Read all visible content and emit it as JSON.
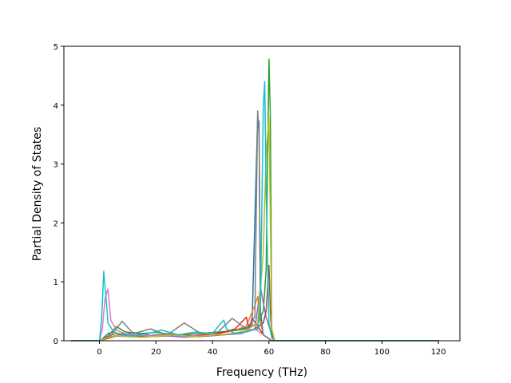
{
  "chart_data": {
    "type": "line",
    "title": "",
    "xlabel": "Frequency (THz)",
    "ylabel": "Partial Density of States",
    "xlim": [
      -12.6,
      127.6
    ],
    "ylim": [
      0,
      5
    ],
    "xticks": [
      0,
      20,
      40,
      60,
      80,
      100,
      120
    ],
    "yticks": [
      0,
      1,
      2,
      3,
      4,
      5
    ],
    "xtick_labels": [
      "0",
      "20",
      "40",
      "60",
      "80",
      "100",
      "120"
    ],
    "ytick_labels": [
      "0",
      "1",
      "2",
      "3",
      "4",
      "5"
    ],
    "grid": false,
    "legend": "none",
    "series": [
      {
        "color": "#1f77b4",
        "x": [
          -10,
          0,
          1,
          3,
          5,
          8,
          12,
          18,
          25,
          32,
          40,
          45,
          50,
          54,
          56,
          56.5,
          57,
          58,
          61,
          62,
          120
        ],
        "y": [
          0,
          0,
          0.03,
          0.12,
          0.15,
          0.1,
          0.14,
          0.09,
          0.11,
          0.08,
          0.13,
          0.16,
          0.2,
          0.25,
          3.8,
          3.7,
          0.5,
          0.1,
          0,
          0,
          0
        ]
      },
      {
        "color": "#ff7f0e",
        "x": [
          -10,
          0,
          2,
          4,
          6,
          10,
          14,
          20,
          28,
          35,
          42,
          48,
          52,
          55,
          56,
          57,
          58,
          61,
          62,
          120
        ],
        "y": [
          0,
          0,
          0.05,
          0.1,
          0.12,
          0.08,
          0.11,
          0.07,
          0.1,
          0.09,
          0.12,
          0.18,
          0.25,
          0.6,
          0.75,
          0.3,
          0.1,
          0,
          0,
          0
        ]
      },
      {
        "color": "#2ca02c",
        "x": [
          -10,
          0,
          3,
          6,
          9,
          14,
          20,
          27,
          34,
          40,
          46,
          52,
          56,
          58,
          59,
          60,
          60.5,
          61,
          62,
          120
        ],
        "y": [
          0,
          0,
          0.08,
          0.24,
          0.15,
          0.12,
          0.14,
          0.1,
          0.12,
          0.14,
          0.16,
          0.2,
          0.3,
          0.5,
          1.2,
          4.78,
          3.8,
          0.2,
          0,
          0
        ]
      },
      {
        "color": "#d62728",
        "x": [
          -10,
          0,
          4,
          8,
          12,
          18,
          24,
          30,
          36,
          42,
          48,
          50,
          52,
          53,
          54,
          56,
          58,
          61,
          62,
          120
        ],
        "y": [
          0,
          0,
          0.05,
          0.12,
          0.1,
          0.08,
          0.1,
          0.07,
          0.09,
          0.12,
          0.2,
          0.3,
          0.4,
          0.2,
          0.38,
          0.25,
          0.1,
          0,
          0,
          0
        ]
      },
      {
        "color": "#9467bd",
        "x": [
          -10,
          0,
          2,
          6,
          10,
          16,
          22,
          30,
          38,
          44,
          50,
          55,
          57,
          59,
          61,
          62,
          120
        ],
        "y": [
          0,
          0,
          0.04,
          0.08,
          0.07,
          0.06,
          0.09,
          0.06,
          0.08,
          0.1,
          0.12,
          0.2,
          0.9,
          0.4,
          0.1,
          0,
          0
        ]
      },
      {
        "color": "#8c564b",
        "x": [
          -10,
          0,
          3,
          7,
          11,
          17,
          23,
          29,
          35,
          41,
          47,
          52,
          55,
          58,
          59,
          60,
          60.5,
          61,
          62,
          120
        ],
        "y": [
          0,
          0,
          0.06,
          0.1,
          0.08,
          0.07,
          0.08,
          0.1,
          0.07,
          0.09,
          0.12,
          0.15,
          0.2,
          0.3,
          0.5,
          1.28,
          0.5,
          0.1,
          0,
          0
        ]
      },
      {
        "color": "#e377c2",
        "x": [
          -10,
          0,
          1,
          2,
          3,
          4,
          6,
          9,
          13,
          19,
          25,
          31,
          37,
          43,
          49,
          55,
          58,
          61,
          62,
          120
        ],
        "y": [
          0,
          0,
          0.2,
          0.72,
          0.88,
          0.35,
          0.18,
          0.12,
          0.1,
          0.08,
          0.1,
          0.07,
          0.12,
          0.1,
          0.14,
          0.2,
          0.1,
          0,
          0,
          0
        ]
      },
      {
        "color": "#7f7f7f",
        "x": [
          -10,
          0,
          4,
          8,
          12,
          18,
          24,
          30,
          36,
          42,
          47,
          52,
          55,
          56,
          56.5,
          57,
          58,
          61,
          62,
          120
        ],
        "y": [
          0,
          0,
          0.08,
          0.33,
          0.12,
          0.2,
          0.1,
          0.3,
          0.12,
          0.15,
          0.38,
          0.2,
          0.4,
          3.9,
          3.5,
          0.4,
          0.1,
          0,
          0,
          0
        ]
      },
      {
        "color": "#bcbd22",
        "x": [
          -10,
          0,
          3,
          6,
          10,
          15,
          21,
          27,
          33,
          39,
          45,
          51,
          56,
          58,
          59,
          60,
          61,
          62,
          120
        ],
        "y": [
          0,
          0,
          0.05,
          0.09,
          0.07,
          0.06,
          0.08,
          0.1,
          0.07,
          0.09,
          0.11,
          0.15,
          0.3,
          1.5,
          3.2,
          3.8,
          0.2,
          0,
          0
        ]
      },
      {
        "color": "#17becf",
        "x": [
          -10,
          0,
          0.8,
          1.5,
          2.2,
          3,
          5,
          8,
          12,
          17,
          22,
          28,
          34,
          40,
          43,
          44,
          45,
          48,
          52,
          56,
          57,
          58,
          58.5,
          59,
          60,
          61,
          62,
          120
        ],
        "y": [
          0,
          0,
          0.4,
          1.18,
          0.8,
          0.3,
          0.15,
          0.1,
          0.08,
          0.12,
          0.18,
          0.1,
          0.15,
          0.12,
          0.3,
          0.35,
          0.2,
          0.12,
          0.15,
          0.2,
          0.6,
          4.0,
          4.4,
          2.5,
          0.3,
          0.05,
          0,
          0
        ]
      }
    ]
  }
}
